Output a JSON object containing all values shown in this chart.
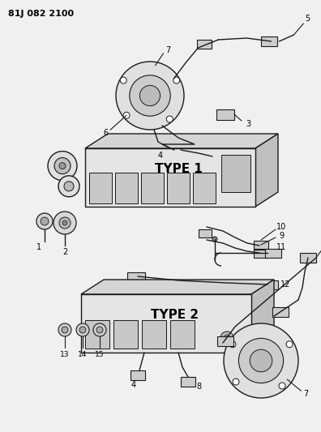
{
  "title": "81J 082 2100",
  "bg_color": "#f0f0f0",
  "line_color": "#1a1a1a",
  "text_color": "#000000",
  "type1_label": "TYPE 1",
  "type2_label": "TYPE 2",
  "fig_w": 3.96,
  "fig_h": 5.33,
  "dpi": 100
}
